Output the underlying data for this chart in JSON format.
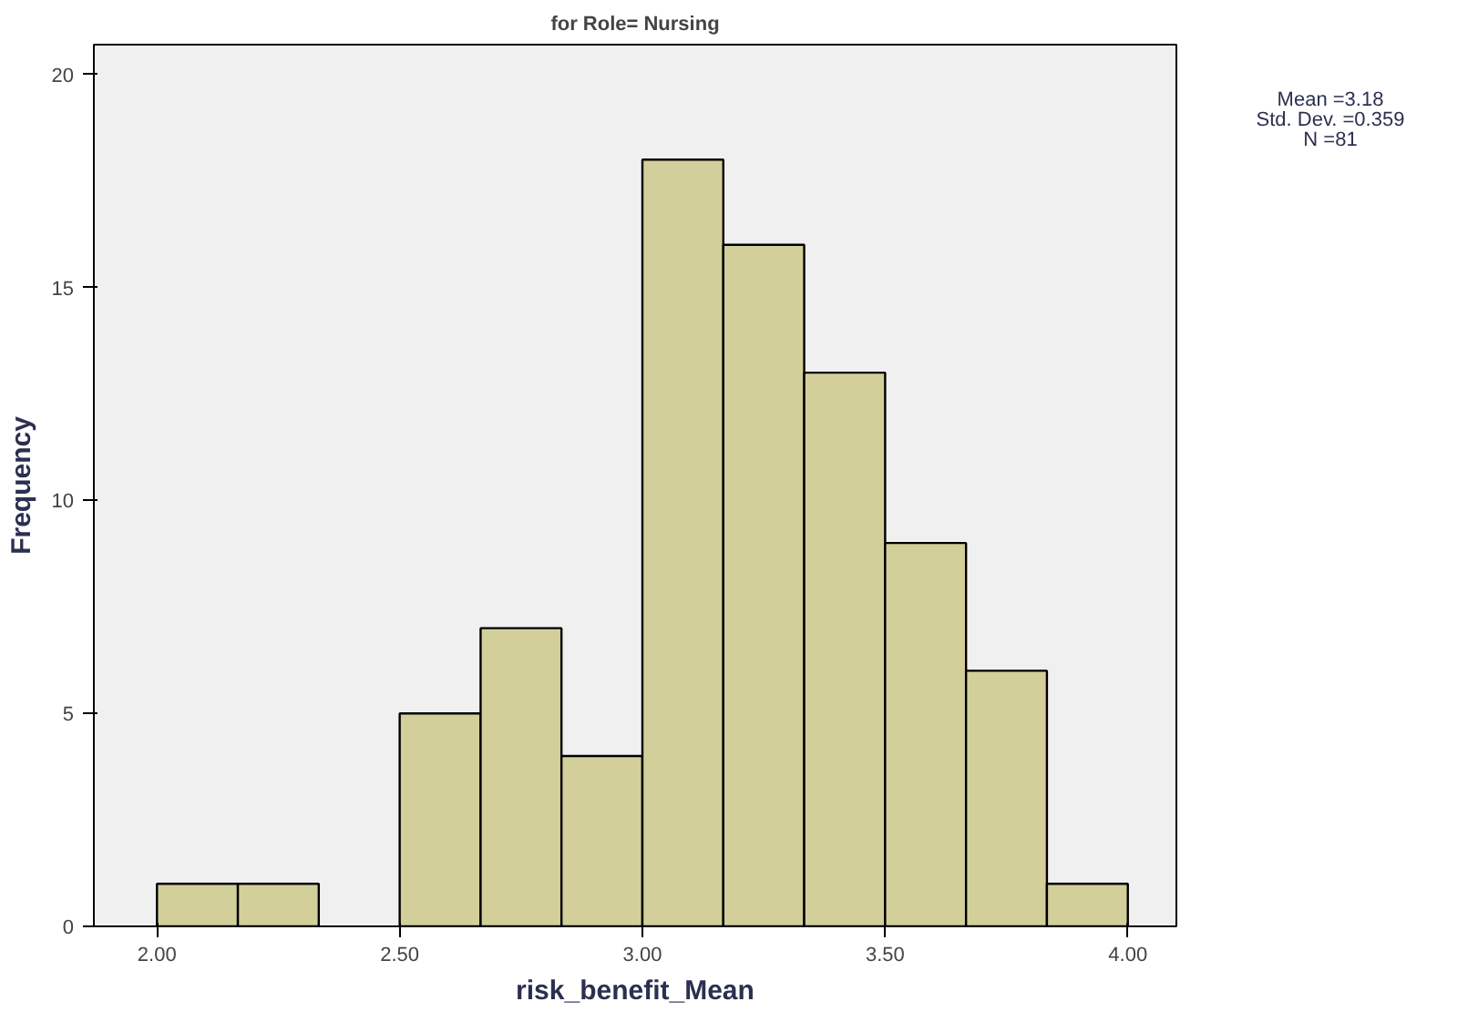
{
  "chart_data": {
    "type": "histogram",
    "title": "for Role= Nursing",
    "xlabel": "risk_benefit_Mean",
    "ylabel": "Frequency",
    "bins": [
      2.0,
      2.1667,
      2.3333,
      2.5,
      2.6667,
      2.8333,
      3.0,
      3.1667,
      3.3333,
      3.5,
      3.6667,
      3.8333,
      4.0
    ],
    "values": [
      1,
      1,
      0,
      5,
      7,
      4,
      18,
      16,
      13,
      9,
      6,
      1
    ],
    "color": "#d3cf9b",
    "xlim": [
      1.87,
      4.1
    ],
    "ylim": [
      0,
      20.7
    ],
    "xticks": [
      {
        "value": 2,
        "label": "2.00"
      },
      {
        "value": 2.5,
        "label": "2.50"
      },
      {
        "value": 3,
        "label": "3.00"
      },
      {
        "value": 3.5,
        "label": "3.50"
      },
      {
        "value": 4,
        "label": "4.00"
      }
    ],
    "yticks": [
      0,
      5,
      10,
      15,
      20
    ],
    "annotations": [
      "Mean =3.18",
      "Std. Dev. =0.359",
      "N =81"
    ],
    "grid": false
  }
}
